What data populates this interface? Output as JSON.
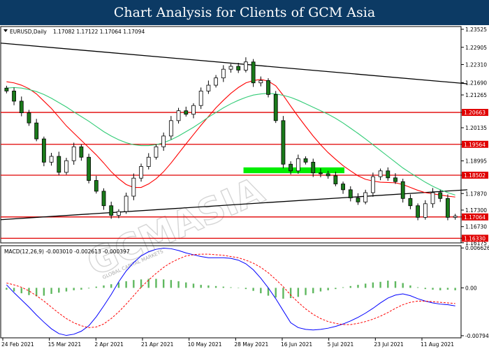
{
  "header": {
    "title": "Chart Analysis for Clients of GCM Asia"
  },
  "watermark": {
    "text": "GCMASIA",
    "subtext": "GLOBAL CAPITAL MARKETS"
  },
  "chart_data": [
    {
      "type": "candlestick",
      "symbol": "EURUSD,Daily",
      "ohlc_label": "1.17082 1.17122 1.17064 1.17094",
      "y_ticks": [
        "1.23525",
        "1.22905",
        "1.22310",
        "1.21690",
        "1.21265",
        "1.20663",
        "1.20135",
        "1.19564",
        "1.18995",
        "1.18502",
        "1.17870",
        "1.17300",
        "1.17064",
        "1.16730",
        "1.16330",
        "1.16175"
      ],
      "y_tick_values": [
        1.23525,
        1.22905,
        1.2231,
        1.2169,
        1.21265,
        1.20663,
        1.20135,
        1.19564,
        1.18995,
        1.18502,
        1.1787,
        1.173,
        1.17064,
        1.1673,
        1.1633,
        1.16175
      ],
      "ylim": [
        1.1617,
        1.2362
      ],
      "x_ticks": [
        "24 Feb 2021",
        "15 Mar 2021",
        "2 Apr 2021",
        "21 Apr 2021",
        "10 May 2021",
        "28 May 2021",
        "16 Jun 2021",
        "5 Jul 2021",
        "23 Jul 2021",
        "11 Aug 2021"
      ],
      "levels": [
        {
          "price": 1.20663,
          "label": "1.20663",
          "color": "#e00000"
        },
        {
          "price": 1.19564,
          "label": "1.19564",
          "color": "#e00000"
        },
        {
          "price": 1.18502,
          "label": "1.18502",
          "color": "#e00000"
        },
        {
          "price": 1.17064,
          "label": "1.17064",
          "color": "#e00000"
        },
        {
          "price": 1.1633,
          "label": "1.16330",
          "color": "#e00000"
        }
      ],
      "zone": {
        "from_bar": 38,
        "to_bar": 54,
        "low": 1.1857,
        "high": 1.1877,
        "color": "#00ee00"
      },
      "trendlines": [
        {
          "from": [
            0,
            1.2305
          ],
          "to": [
            73,
            1.2165
          ],
          "color": "#000000"
        },
        {
          "from": [
            0,
            1.1697
          ],
          "to": [
            73,
            1.18
          ],
          "color": "#000000"
        }
      ],
      "closes": [
        1.214,
        1.2105,
        1.2065,
        1.203,
        1.1975,
        1.1895,
        1.1915,
        1.186,
        1.19,
        1.1948,
        1.1912,
        1.1832,
        1.1795,
        1.1745,
        1.1712,
        1.1725,
        1.1778,
        1.184,
        1.188,
        1.1912,
        1.1948,
        1.1985,
        1.2038,
        1.2072,
        1.206,
        1.209,
        1.214,
        1.216,
        1.2185,
        1.2215,
        1.2225,
        1.2212,
        1.224,
        1.2168,
        1.2176,
        1.2128,
        1.2038,
        1.1888,
        1.1865,
        1.1907,
        1.1895,
        1.1858,
        1.1855,
        1.1848,
        1.182,
        1.18,
        1.1772,
        1.1758,
        1.179,
        1.1845,
        1.1865,
        1.1841,
        1.1828,
        1.177,
        1.1745,
        1.1705,
        1.1752,
        1.179,
        1.177,
        1.1705,
        1.1709
      ],
      "series": [
        {
          "name": "MA fast",
          "color": "#ff0000",
          "values": [
            1.2172,
            1.2168,
            1.216,
            1.2148,
            1.213,
            1.2105,
            1.208,
            1.205,
            1.202,
            1.1995,
            1.197,
            1.1945,
            1.192,
            1.1892,
            1.1862,
            1.1838,
            1.1818,
            1.1808,
            1.1808,
            1.182,
            1.1838,
            1.1862,
            1.1892,
            1.1925,
            1.1958,
            1.199,
            1.2022,
            1.2052,
            1.2082,
            1.2108,
            1.2132,
            1.2152,
            1.2168,
            1.2176,
            1.218,
            1.2174,
            1.2158,
            1.2125,
            1.2088,
            1.2052,
            1.2018,
            1.1985,
            1.1955,
            1.1928,
            1.1905,
            1.1883,
            1.1865,
            1.1848,
            1.1836,
            1.183,
            1.1826,
            1.1825,
            1.1824,
            1.1818,
            1.1808,
            1.1798,
            1.179,
            1.1786,
            1.1782,
            1.1778,
            1.1775
          ]
        },
        {
          "name": "MA slow",
          "color": "#33cc77",
          "values": [
            1.215,
            1.2152,
            1.215,
            1.2145,
            1.2138,
            1.2128,
            1.2115,
            1.21,
            1.2085,
            1.2068,
            1.2052,
            1.2036,
            1.2018,
            1.2,
            1.1985,
            1.1972,
            1.1962,
            1.1955,
            1.1952,
            1.1952,
            1.1955,
            1.1962,
            1.1972,
            1.1985,
            1.2,
            1.2015,
            1.2032,
            1.205,
            1.2066,
            1.2082,
            1.2096,
            1.2108,
            1.2118,
            1.2126,
            1.213,
            1.2132,
            1.213,
            1.2125,
            1.2118,
            1.2108,
            1.2096,
            1.2084,
            1.2072,
            1.206,
            1.2046,
            1.203,
            1.2012,
            1.1994,
            1.1975,
            1.1955,
            1.1935,
            1.1915,
            1.1895,
            1.1875,
            1.1858,
            1.1842,
            1.1826,
            1.1812,
            1.18,
            1.179,
            1.1782
          ]
        }
      ]
    },
    {
      "type": "macd",
      "label": "MACD(12,26,9) -0.003010 -0.002613 -0.000397",
      "y_ticks": [
        "0.006626",
        "0.00",
        "-0.007945"
      ],
      "y_tick_values": [
        0.006626,
        0.0,
        -0.007945
      ],
      "ylim": [
        -0.0083,
        0.007
      ],
      "histogram": [
        -0.0003,
        -0.0006,
        -0.0009,
        -0.0012,
        -0.0014,
        -0.0013,
        -0.001,
        -0.0008,
        -0.0006,
        -0.0004,
        -0.0003,
        -0.0001,
        0.0002,
        0.0004,
        0.0006,
        0.0009,
        0.0011,
        0.0013,
        0.0014,
        0.0015,
        0.0015,
        0.0014,
        0.0013,
        0.0011,
        0.0009,
        0.0007,
        0.0005,
        0.0004,
        0.0003,
        0.0002,
        0.0001,
        0.0,
        -0.0002,
        -0.0005,
        -0.0009,
        -0.0013,
        -0.0016,
        -0.0018,
        -0.0017,
        -0.0015,
        -0.0012,
        -0.0009,
        -0.0006,
        -0.0004,
        -0.0002,
        0.0001,
        0.0003,
        0.0005,
        0.0007,
        0.0009,
        0.001,
        0.0012,
        0.0011,
        0.0008,
        0.0004,
        0.0001,
        -0.0002,
        -0.0003,
        -0.0004,
        -0.0003,
        -0.0004
      ],
      "series": [
        {
          "name": "MACD",
          "color": "#0000ff",
          "values": [
            0.0005,
            -0.0008,
            -0.002,
            -0.0032,
            -0.0045,
            -0.0057,
            -0.0068,
            -0.0076,
            -0.0079,
            -0.0077,
            -0.0072,
            -0.0063,
            -0.0048,
            -0.003,
            -0.0011,
            0.001,
            0.0028,
            0.0042,
            0.0053,
            0.006,
            0.0064,
            0.0066,
            0.0065,
            0.0062,
            0.0058,
            0.0055,
            0.0052,
            0.005,
            0.005,
            0.005,
            0.0049,
            0.0046,
            0.004,
            0.003,
            0.0016,
            0.0,
            -0.0018,
            -0.0038,
            -0.0058,
            -0.0066,
            -0.0069,
            -0.007,
            -0.0069,
            -0.0067,
            -0.0064,
            -0.006,
            -0.0055,
            -0.0049,
            -0.0042,
            -0.0034,
            -0.0025,
            -0.0017,
            -0.0012,
            -0.001,
            -0.0013,
            -0.0018,
            -0.0022,
            -0.0025,
            -0.0027,
            -0.0028,
            -0.003
          ]
        },
        {
          "name": "Signal",
          "color": "#ff0000",
          "values": [
            0.0008,
            0.0005,
            0.0001,
            -0.0005,
            -0.0013,
            -0.0022,
            -0.0032,
            -0.0042,
            -0.0051,
            -0.0058,
            -0.0063,
            -0.0066,
            -0.0065,
            -0.006,
            -0.0051,
            -0.004,
            -0.0027,
            -0.0013,
            0.0001,
            0.0013,
            0.0024,
            0.0034,
            0.0042,
            0.0048,
            0.0053,
            0.0055,
            0.0056,
            0.0056,
            0.0055,
            0.0054,
            0.0052,
            0.005,
            0.0046,
            0.0041,
            0.0034,
            0.0025,
            0.0014,
            0.0002,
            -0.0012,
            -0.0024,
            -0.0035,
            -0.0044,
            -0.0051,
            -0.0056,
            -0.0059,
            -0.0061,
            -0.0061,
            -0.0059,
            -0.0056,
            -0.0052,
            -0.0047,
            -0.0041,
            -0.0034,
            -0.0028,
            -0.0024,
            -0.0022,
            -0.0022,
            -0.0023,
            -0.0024,
            -0.0025,
            -0.0026
          ]
        }
      ]
    }
  ]
}
